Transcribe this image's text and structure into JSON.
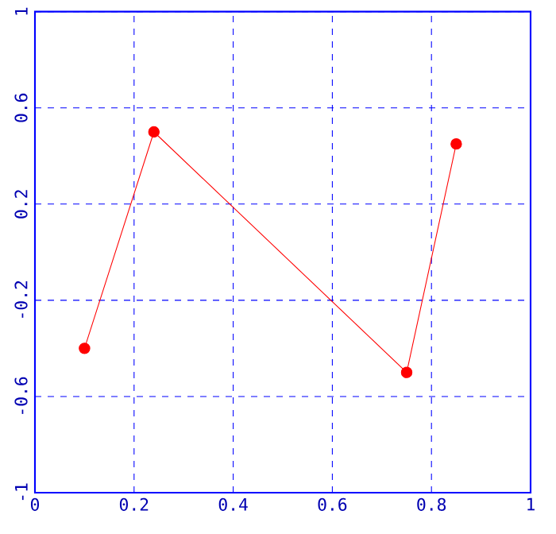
{
  "chart_data": {
    "type": "line",
    "x": [
      0.1,
      0.24,
      0.75,
      0.85
    ],
    "values": [
      -0.4,
      0.5,
      -0.5,
      0.45
    ],
    "color": "#ff0000",
    "xlim": [
      0,
      1
    ],
    "xticks": [
      0,
      0.2,
      0.4,
      0.6,
      0.8,
      1
    ],
    "ylim": [
      -1,
      1
    ],
    "yticks": [
      -1,
      -0.6,
      -0.2,
      0.2,
      0.6,
      1
    ],
    "grid": true,
    "marker": "circle",
    "line_style": "solid"
  }
}
